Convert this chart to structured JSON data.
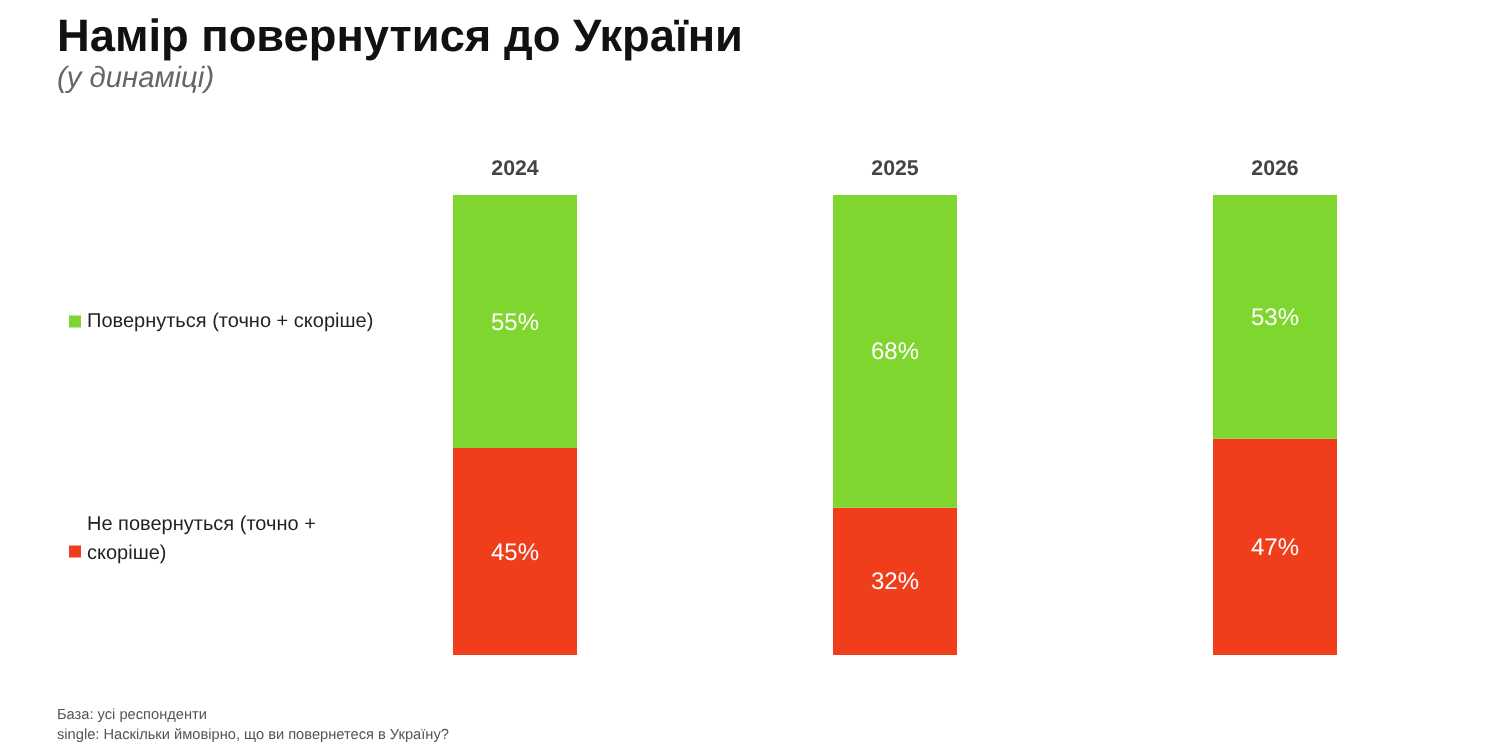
{
  "chart_data": {
    "type": "bar",
    "stacked": true,
    "title": "Намір повернутися до України",
    "subtitle": "(у динаміці)",
    "categories": [
      "2024",
      "2025",
      "2026"
    ],
    "series": [
      {
        "name": "Не повернуться (точно + скоріше)",
        "color": "#f03e1c",
        "values": [
          45,
          32,
          47
        ],
        "value_labels": [
          "45%",
          "32%",
          "47%"
        ]
      },
      {
        "name": "Повернуться (точно + скоріше)",
        "color": "#7ed62f",
        "values": [
          55,
          68,
          53
        ],
        "value_labels": [
          "55%",
          "68%",
          "53%"
        ]
      }
    ],
    "legend": "left",
    "annotations": [
      "База: усі респонденти",
      "single: Наскільки ймовірно, що ви повернетеся в Україну?"
    ]
  }
}
